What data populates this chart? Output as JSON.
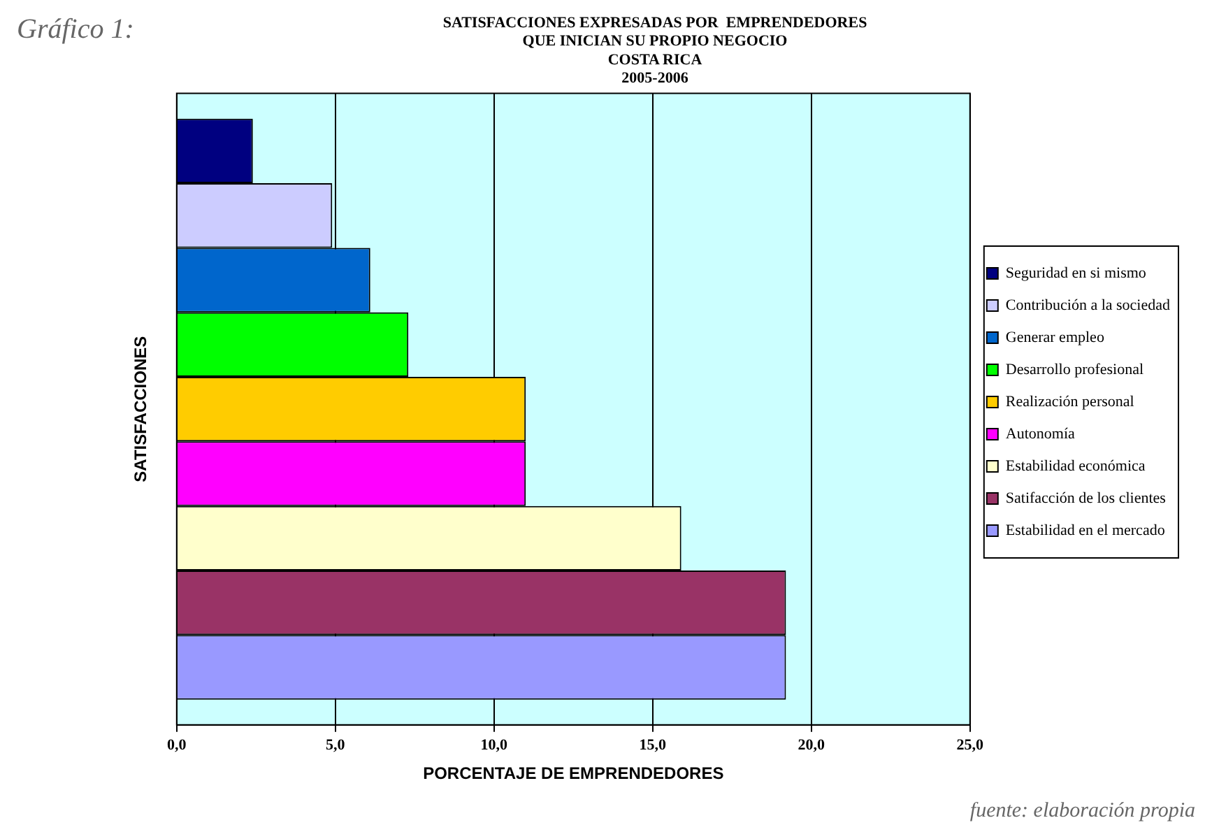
{
  "chart_data": {
    "type": "bar",
    "orientation": "horizontal",
    "title": [
      "SATISFACCIONES EXPRESADAS POR  EMPRENDEDORES",
      "QUE INICIAN SU PROPIO NEGOCIO",
      "COSTA RICA",
      "2005-2006"
    ],
    "xlabel": "PORCENTAJE DE EMPRENDEDORES",
    "ylabel": "SATISFACCIONES",
    "categories": [
      null
    ],
    "series": [
      {
        "name": "Seguridad en si mismo",
        "color": "#000080",
        "values": [
          2.4
        ]
      },
      {
        "name": "Contribución a la sociedad",
        "color": "#ccccff",
        "values": [
          4.9
        ]
      },
      {
        "name": "Generar empleo",
        "color": "#0066cc",
        "values": [
          6.1
        ]
      },
      {
        "name": "Desarrollo profesional",
        "color": "#00ff00",
        "values": [
          7.3
        ]
      },
      {
        "name": "Realización personal",
        "color": "#ffcc00",
        "values": [
          11.0
        ]
      },
      {
        "name": "Autonomía",
        "color": "#ff00ff",
        "values": [
          11.0
        ]
      },
      {
        "name": "Estabilidad económica",
        "color": "#ffffcc",
        "values": [
          15.9
        ]
      },
      {
        "name": "Satifacción de los clientes",
        "color": "#993366",
        "values": [
          19.2
        ]
      },
      {
        "name": "Estabilidad en el mercado",
        "color": "#9999ff",
        "values": [
          19.2
        ]
      }
    ],
    "xlim": [
      0,
      25
    ],
    "xticks": [
      {
        "value": 0,
        "label": "0,0"
      },
      {
        "value": 5,
        "label": "5,0"
      },
      {
        "value": 10,
        "label": "10,0"
      },
      {
        "value": 15,
        "label": "15,0"
      },
      {
        "value": 20,
        "label": "20,0"
      },
      {
        "value": 25,
        "label": "25,0"
      }
    ],
    "grid": "x",
    "legend": "right",
    "annotations": [
      "Gráfico 1:",
      "fuente: elaboración propia"
    ]
  }
}
